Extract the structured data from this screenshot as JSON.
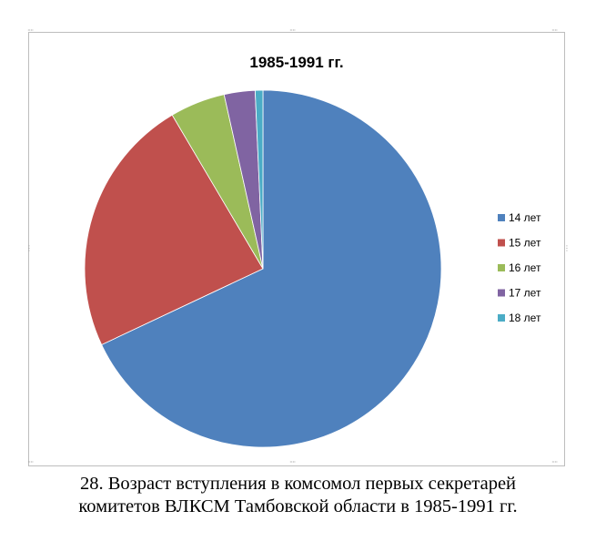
{
  "chart_data": {
    "type": "pie",
    "title": "1985-1991 гг.",
    "categories": [
      "14 лет",
      "15 лет",
      "16 лет",
      "17 лет",
      "18 лет"
    ],
    "values": [
      68,
      23.5,
      5,
      2.8,
      0.7
    ],
    "colors": [
      "#4f81bd",
      "#c0504d",
      "#9bbb59",
      "#8064a2",
      "#4bacc6"
    ],
    "legend_position": "right",
    "start_angle": "12 o'clock",
    "direction": "clockwise"
  },
  "caption": {
    "line1": "28. Возраст вступления в комсомол первых секретарей",
    "line2": "комитетов ВЛКСМ Тамбовской области в 1985-1991 гг."
  }
}
